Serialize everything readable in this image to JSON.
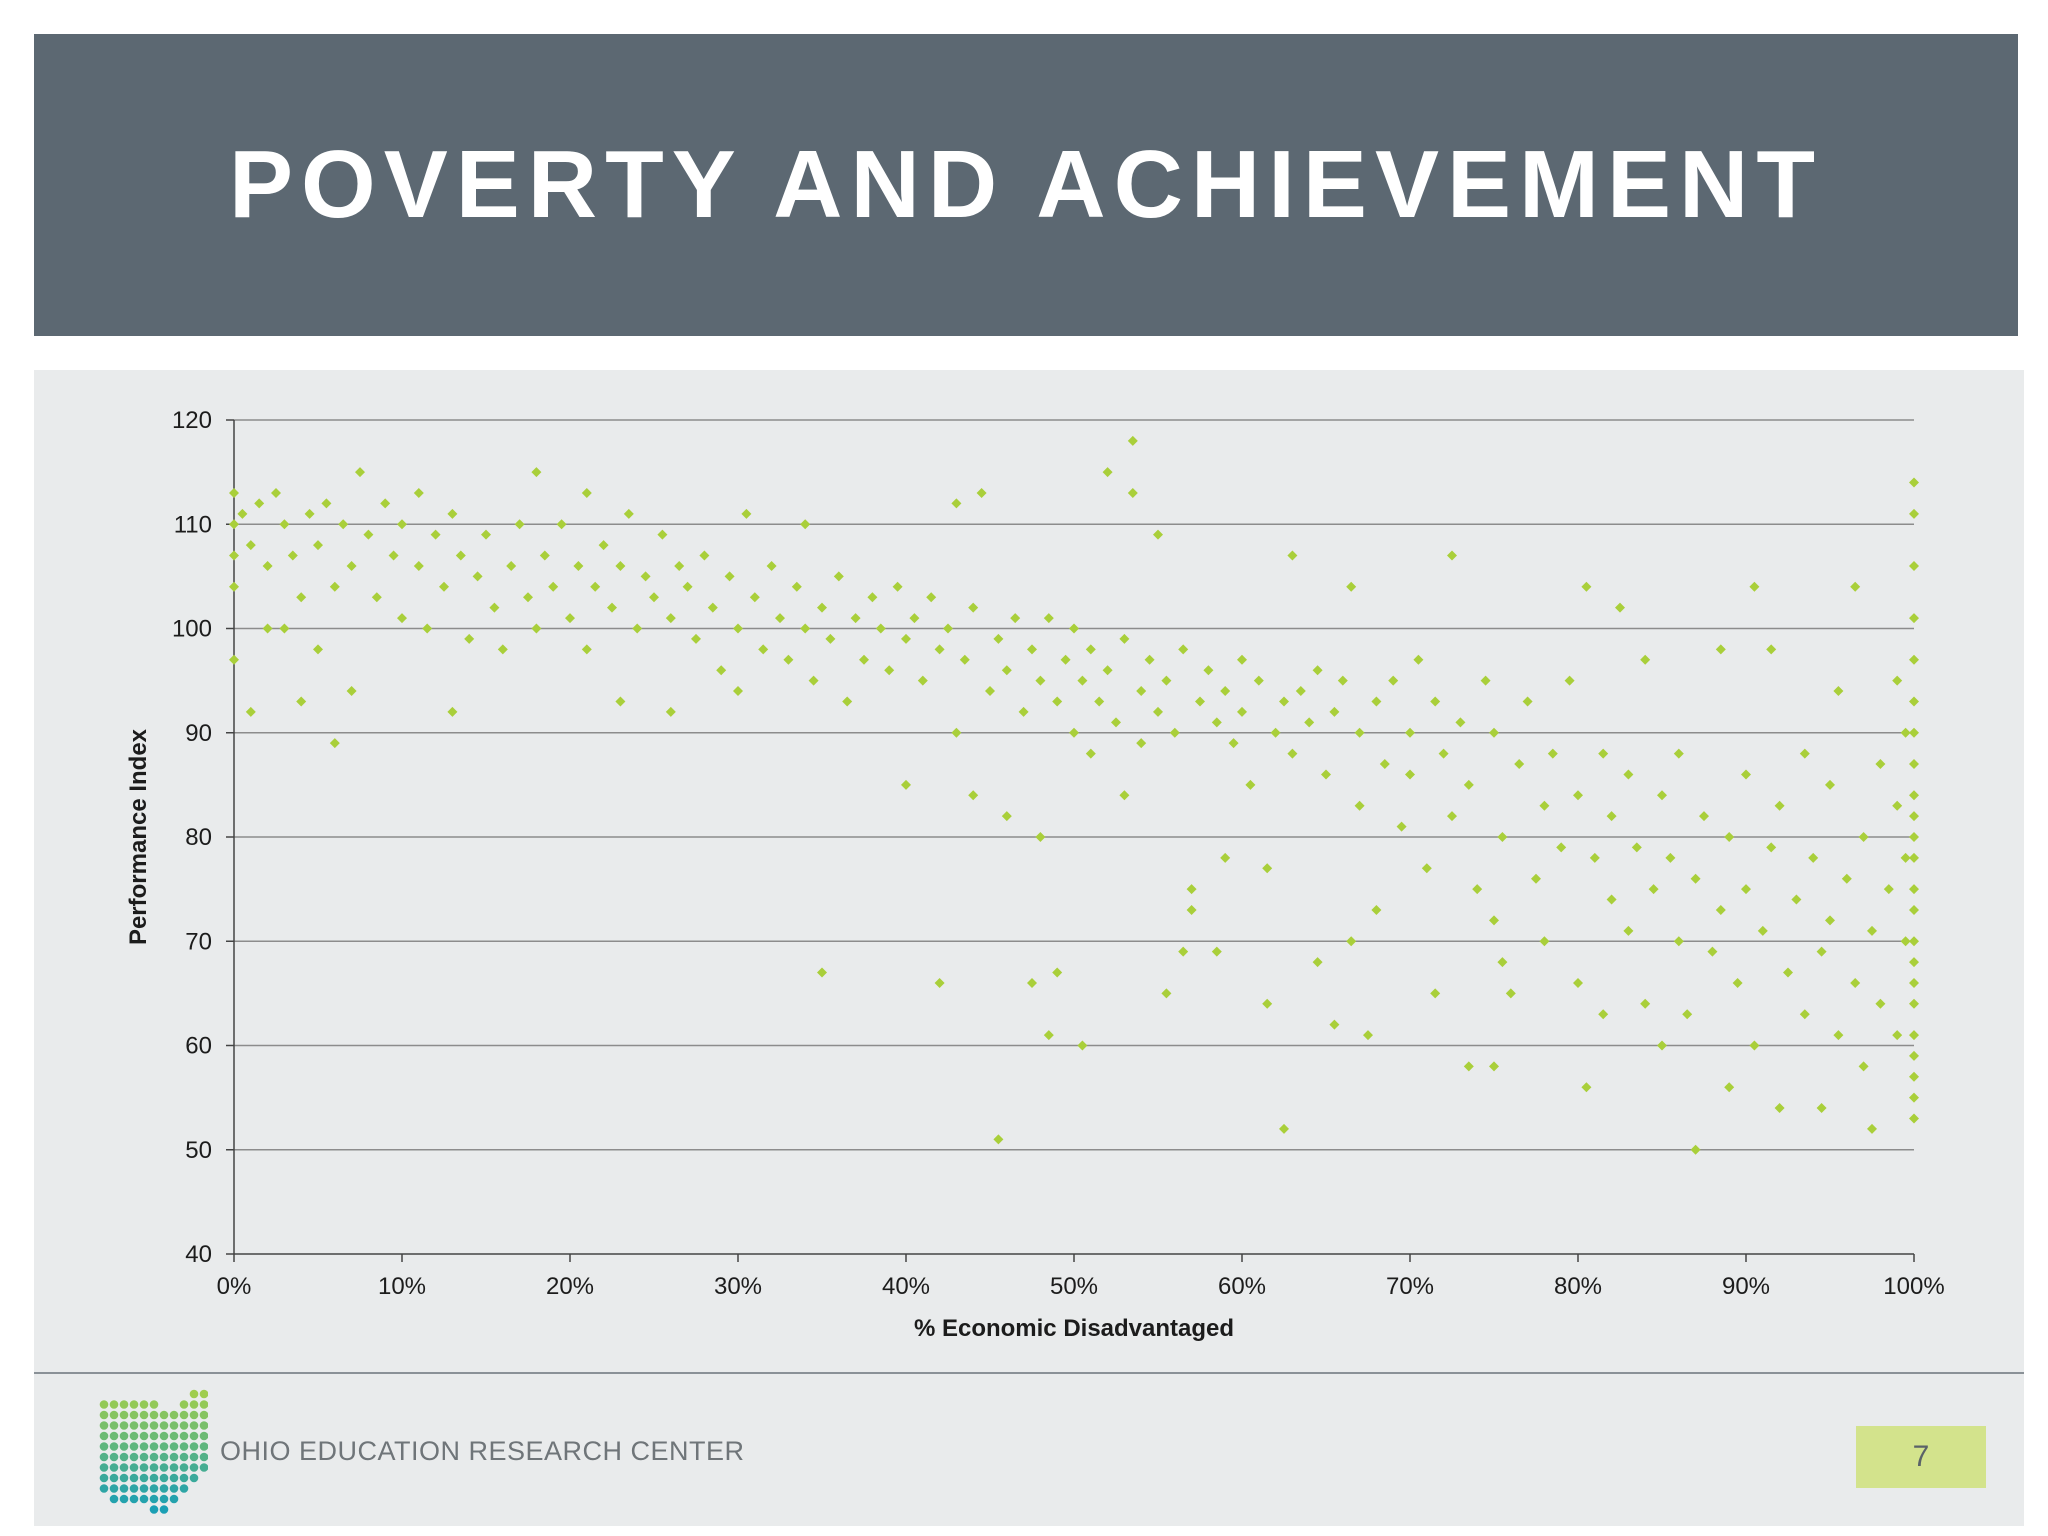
{
  "slide": {
    "title": "POVERTY AND ACHIEVEMENT",
    "organization": "OHIO EDUCATION RESEARCH CENTER",
    "page_number": "7"
  },
  "colors": {
    "title_bar": "#5c6872",
    "panel": "#e9ebec",
    "points": "#a9cf3a",
    "page_box": "#d3e38c"
  },
  "chart_data": {
    "type": "scatter",
    "title": "",
    "xlabel": "% Economic Disadvantaged",
    "ylabel": "Performance Index",
    "xlim": [
      0,
      100
    ],
    "ylim": [
      40,
      120
    ],
    "x_ticks": [
      0,
      10,
      20,
      30,
      40,
      50,
      60,
      70,
      80,
      90,
      100
    ],
    "x_tick_labels": [
      "0%",
      "10%",
      "20%",
      "30%",
      "40%",
      "50%",
      "60%",
      "70%",
      "80%",
      "90%",
      "100%"
    ],
    "y_ticks": [
      40,
      50,
      60,
      70,
      80,
      90,
      100,
      110,
      120
    ],
    "y_tick_labels": [
      "40",
      "50",
      "60",
      "70",
      "80",
      "90",
      "100",
      "110",
      "120"
    ],
    "grid": "horizontal",
    "legend": "none",
    "marker": "diamond",
    "series": [
      {
        "points": [
          [
            0,
            113
          ],
          [
            0,
            110
          ],
          [
            0,
            107
          ],
          [
            0,
            104
          ],
          [
            0,
            97
          ],
          [
            0.5,
            111
          ],
          [
            1,
            108
          ],
          [
            1,
            92
          ],
          [
            1.5,
            112
          ],
          [
            2,
            100
          ],
          [
            2,
            106
          ],
          [
            2.5,
            113
          ],
          [
            3,
            110
          ],
          [
            3,
            100
          ],
          [
            3.5,
            107
          ],
          [
            4,
            93
          ],
          [
            4,
            103
          ],
          [
            4.5,
            111
          ],
          [
            5,
            98
          ],
          [
            5,
            108
          ],
          [
            5.5,
            112
          ],
          [
            6,
            89
          ],
          [
            6,
            104
          ],
          [
            6.5,
            110
          ],
          [
            7,
            94
          ],
          [
            7,
            106
          ],
          [
            7.5,
            115
          ],
          [
            8,
            109
          ],
          [
            8.5,
            103
          ],
          [
            9,
            112
          ],
          [
            9.5,
            107
          ],
          [
            10,
            110
          ],
          [
            10,
            101
          ],
          [
            11,
            113
          ],
          [
            11,
            106
          ],
          [
            11.5,
            100
          ],
          [
            12,
            109
          ],
          [
            12.5,
            104
          ],
          [
            13,
            92
          ],
          [
            13,
            111
          ],
          [
            13.5,
            107
          ],
          [
            14,
            99
          ],
          [
            14.5,
            105
          ],
          [
            15,
            109
          ],
          [
            15.5,
            102
          ],
          [
            16,
            98
          ],
          [
            16.5,
            106
          ],
          [
            17,
            110
          ],
          [
            17.5,
            103
          ],
          [
            18,
            115
          ],
          [
            18,
            100
          ],
          [
            18.5,
            107
          ],
          [
            19,
            104
          ],
          [
            19.5,
            110
          ],
          [
            20,
            101
          ],
          [
            20.5,
            106
          ],
          [
            21,
            113
          ],
          [
            21,
            98
          ],
          [
            21.5,
            104
          ],
          [
            22,
            108
          ],
          [
            22.5,
            102
          ],
          [
            23,
            93
          ],
          [
            23,
            106
          ],
          [
            23.5,
            111
          ],
          [
            24,
            100
          ],
          [
            24.5,
            105
          ],
          [
            25,
            103
          ],
          [
            25.5,
            109
          ],
          [
            26,
            92
          ],
          [
            26,
            101
          ],
          [
            26.5,
            106
          ],
          [
            27,
            104
          ],
          [
            27.5,
            99
          ],
          [
            28,
            107
          ],
          [
            28.5,
            102
          ],
          [
            29,
            96
          ],
          [
            29.5,
            105
          ],
          [
            30,
            100
          ],
          [
            30,
            94
          ],
          [
            30.5,
            111
          ],
          [
            31,
            103
          ],
          [
            31.5,
            98
          ],
          [
            32,
            106
          ],
          [
            32.5,
            101
          ],
          [
            33,
            97
          ],
          [
            33.5,
            104
          ],
          [
            34,
            100
          ],
          [
            34,
            110
          ],
          [
            34.5,
            95
          ],
          [
            35,
            67
          ],
          [
            35,
            102
          ],
          [
            35.5,
            99
          ],
          [
            36,
            105
          ],
          [
            36.5,
            93
          ],
          [
            37,
            101
          ],
          [
            37.5,
            97
          ],
          [
            38,
            103
          ],
          [
            38.5,
            100
          ],
          [
            39,
            96
          ],
          [
            39.5,
            104
          ],
          [
            40,
            85
          ],
          [
            40,
            99
          ],
          [
            40.5,
            101
          ],
          [
            41,
            95
          ],
          [
            41.5,
            103
          ],
          [
            42,
            66
          ],
          [
            42,
            98
          ],
          [
            42.5,
            100
          ],
          [
            43,
            90
          ],
          [
            43,
            112
          ],
          [
            43.5,
            97
          ],
          [
            44,
            84
          ],
          [
            44,
            102
          ],
          [
            44.5,
            113
          ],
          [
            45,
            94
          ],
          [
            45.5,
            51
          ],
          [
            45.5,
            99
          ],
          [
            46,
            82
          ],
          [
            46,
            96
          ],
          [
            46.5,
            101
          ],
          [
            47,
            92
          ],
          [
            47.5,
            66
          ],
          [
            47.5,
            98
          ],
          [
            48,
            80
          ],
          [
            48,
            95
          ],
          [
            48.5,
            61
          ],
          [
            48.5,
            101
          ],
          [
            49,
            67
          ],
          [
            49,
            93
          ],
          [
            49.5,
            97
          ],
          [
            50,
            100
          ],
          [
            50,
            90
          ],
          [
            50.5,
            60
          ],
          [
            50.5,
            95
          ],
          [
            51,
            88
          ],
          [
            51,
            98
          ],
          [
            51.5,
            93
          ],
          [
            52,
            115
          ],
          [
            52,
            96
          ],
          [
            52.5,
            91
          ],
          [
            53,
            84
          ],
          [
            53,
            99
          ],
          [
            53.5,
            113
          ],
          [
            53.5,
            118
          ],
          [
            54,
            94
          ],
          [
            54,
            89
          ],
          [
            54.5,
            97
          ],
          [
            55,
            109
          ],
          [
            55,
            92
          ],
          [
            55.5,
            65
          ],
          [
            55.5,
            95
          ],
          [
            56,
            90
          ],
          [
            56.5,
            69
          ],
          [
            56.5,
            98
          ],
          [
            57,
            73
          ],
          [
            57,
            75
          ],
          [
            57.5,
            93
          ],
          [
            58,
            96
          ],
          [
            58.5,
            69
          ],
          [
            58.5,
            91
          ],
          [
            59,
            78
          ],
          [
            59,
            94
          ],
          [
            59.5,
            89
          ],
          [
            60,
            97
          ],
          [
            60,
            92
          ],
          [
            60.5,
            85
          ],
          [
            61,
            95
          ],
          [
            61.5,
            77
          ],
          [
            61.5,
            64
          ],
          [
            62,
            90
          ],
          [
            62.5,
            93
          ],
          [
            62.5,
            52
          ],
          [
            63,
            107
          ],
          [
            63,
            88
          ],
          [
            63.5,
            94
          ],
          [
            64,
            91
          ],
          [
            64.5,
            68
          ],
          [
            64.5,
            96
          ],
          [
            65,
            86
          ],
          [
            65.5,
            62
          ],
          [
            65.5,
            92
          ],
          [
            66,
            95
          ],
          [
            66.5,
            70
          ],
          [
            66.5,
            104
          ],
          [
            67,
            83
          ],
          [
            67,
            90
          ],
          [
            67.5,
            61
          ],
          [
            68,
            93
          ],
          [
            68,
            73
          ],
          [
            68.5,
            87
          ],
          [
            69,
            95
          ],
          [
            69.5,
            81
          ],
          [
            70,
            90
          ],
          [
            70,
            86
          ],
          [
            70.5,
            97
          ],
          [
            71,
            77
          ],
          [
            71.5,
            65
          ],
          [
            71.5,
            93
          ],
          [
            72,
            88
          ],
          [
            72.5,
            107
          ],
          [
            72.5,
            82
          ],
          [
            73,
            91
          ],
          [
            73.5,
            58
          ],
          [
            73.5,
            85
          ],
          [
            74,
            75
          ],
          [
            74.5,
            95
          ],
          [
            75,
            58
          ],
          [
            75,
            72
          ],
          [
            75,
            90
          ],
          [
            75.5,
            68
          ],
          [
            75.5,
            80
          ],
          [
            76,
            65
          ],
          [
            76.5,
            87
          ],
          [
            77,
            93
          ],
          [
            77.5,
            76
          ],
          [
            78,
            70
          ],
          [
            78,
            83
          ],
          [
            78.5,
            88
          ],
          [
            79,
            79
          ],
          [
            79.5,
            95
          ],
          [
            80,
            84
          ],
          [
            80,
            66
          ],
          [
            80.5,
            104
          ],
          [
            80.5,
            56
          ],
          [
            81,
            78
          ],
          [
            81.5,
            63
          ],
          [
            81.5,
            88
          ],
          [
            82,
            74
          ],
          [
            82,
            82
          ],
          [
            82.5,
            102
          ],
          [
            83,
            71
          ],
          [
            83,
            86
          ],
          [
            83.5,
            79
          ],
          [
            84,
            97
          ],
          [
            84,
            64
          ],
          [
            84.5,
            75
          ],
          [
            85,
            60
          ],
          [
            85,
            84
          ],
          [
            85.5,
            78
          ],
          [
            86,
            70
          ],
          [
            86,
            88
          ],
          [
            86.5,
            63
          ],
          [
            87,
            50
          ],
          [
            87,
            76
          ],
          [
            87.5,
            82
          ],
          [
            88,
            69
          ],
          [
            88.5,
            98
          ],
          [
            88.5,
            73
          ],
          [
            89,
            56
          ],
          [
            89,
            80
          ],
          [
            89.5,
            66
          ],
          [
            90,
            86
          ],
          [
            90,
            75
          ],
          [
            90.5,
            60
          ],
          [
            90.5,
            104
          ],
          [
            91,
            71
          ],
          [
            91.5,
            79
          ],
          [
            91.5,
            98
          ],
          [
            92,
            54
          ],
          [
            92,
            83
          ],
          [
            92.5,
            67
          ],
          [
            93,
            74
          ],
          [
            93.5,
            63
          ],
          [
            93.5,
            88
          ],
          [
            94,
            78
          ],
          [
            94.5,
            54
          ],
          [
            94.5,
            69
          ],
          [
            95,
            85
          ],
          [
            95,
            72
          ],
          [
            95.5,
            61
          ],
          [
            95.5,
            94
          ],
          [
            96,
            76
          ],
          [
            96.5,
            66
          ],
          [
            96.5,
            104
          ],
          [
            97,
            58
          ],
          [
            97,
            80
          ],
          [
            97.5,
            52
          ],
          [
            97.5,
            71
          ],
          [
            98,
            87
          ],
          [
            98,
            64
          ],
          [
            98.5,
            75
          ],
          [
            99,
            95
          ],
          [
            99,
            83
          ],
          [
            99,
            61
          ],
          [
            99.5,
            70
          ],
          [
            99.5,
            90
          ],
          [
            99.5,
            78
          ],
          [
            100,
            114
          ],
          [
            100,
            111
          ],
          [
            100,
            106
          ],
          [
            100,
            101
          ],
          [
            100,
            97
          ],
          [
            100,
            93
          ],
          [
            100,
            90
          ],
          [
            100,
            87
          ],
          [
            100,
            84
          ],
          [
            100,
            82
          ],
          [
            100,
            80
          ],
          [
            100,
            78
          ],
          [
            100,
            75
          ],
          [
            100,
            73
          ],
          [
            100,
            70
          ],
          [
            100,
            68
          ],
          [
            100,
            66
          ],
          [
            100,
            64
          ],
          [
            100,
            61
          ],
          [
            100,
            59
          ],
          [
            100,
            57
          ],
          [
            100,
            55
          ],
          [
            100,
            53
          ]
        ]
      }
    ]
  }
}
